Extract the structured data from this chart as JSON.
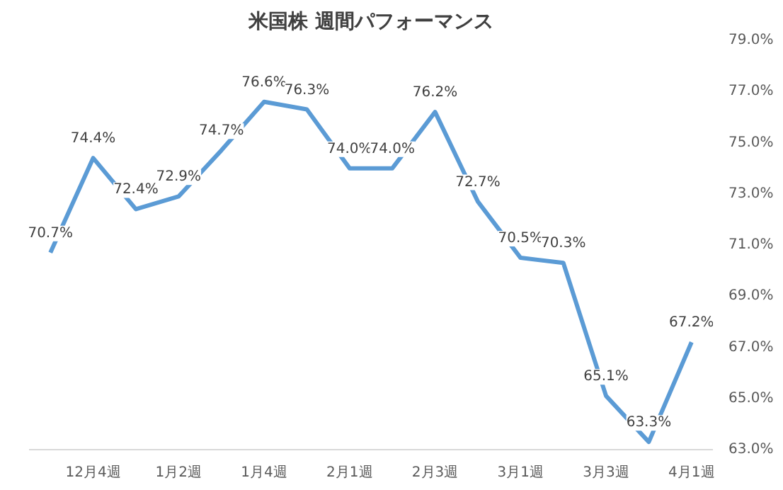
{
  "chart_data": {
    "type": "line",
    "title": "米国株 週間パフォーマンス",
    "categories": [
      null,
      "12月4週",
      null,
      "1月2週",
      null,
      "1月4週",
      null,
      "2月1週",
      null,
      "2月3週",
      null,
      "3月1週",
      null,
      "3月3週",
      null,
      "4月1週"
    ],
    "series": [
      {
        "color": "#5b9bd5",
        "values": [
          70.7,
          74.4,
          72.4,
          72.9,
          74.7,
          76.6,
          76.3,
          74.0,
          74.0,
          76.2,
          72.7,
          70.5,
          70.3,
          65.1,
          63.3,
          67.2
        ],
        "value_labels": [
          "70.7%",
          "74.4%",
          "72.4%",
          "72.9%",
          "74.7%",
          "76.6%",
          "76.3%",
          "74.0%",
          "74.0%",
          "76.2%",
          "72.7%",
          "70.5%",
          "70.3%",
          "65.1%",
          "63.3%",
          "67.2%"
        ]
      }
    ],
    "ylim": [
      63.0,
      79.0
    ],
    "yticks": [
      {
        "value": 63,
        "label": "63.0%"
      },
      {
        "value": 65,
        "label": "65.0%"
      },
      {
        "value": 67,
        "label": "67.0%"
      },
      {
        "value": 69,
        "label": "69.0%"
      },
      {
        "value": 71,
        "label": "71.0%"
      },
      {
        "value": 73,
        "label": "73.0%"
      },
      {
        "value": 75,
        "label": "75.0%"
      },
      {
        "value": 77,
        "label": "77.0%"
      },
      {
        "value": 79,
        "label": "79.0%"
      }
    ],
    "grid": false,
    "marker": "none",
    "line_style": "solid"
  }
}
